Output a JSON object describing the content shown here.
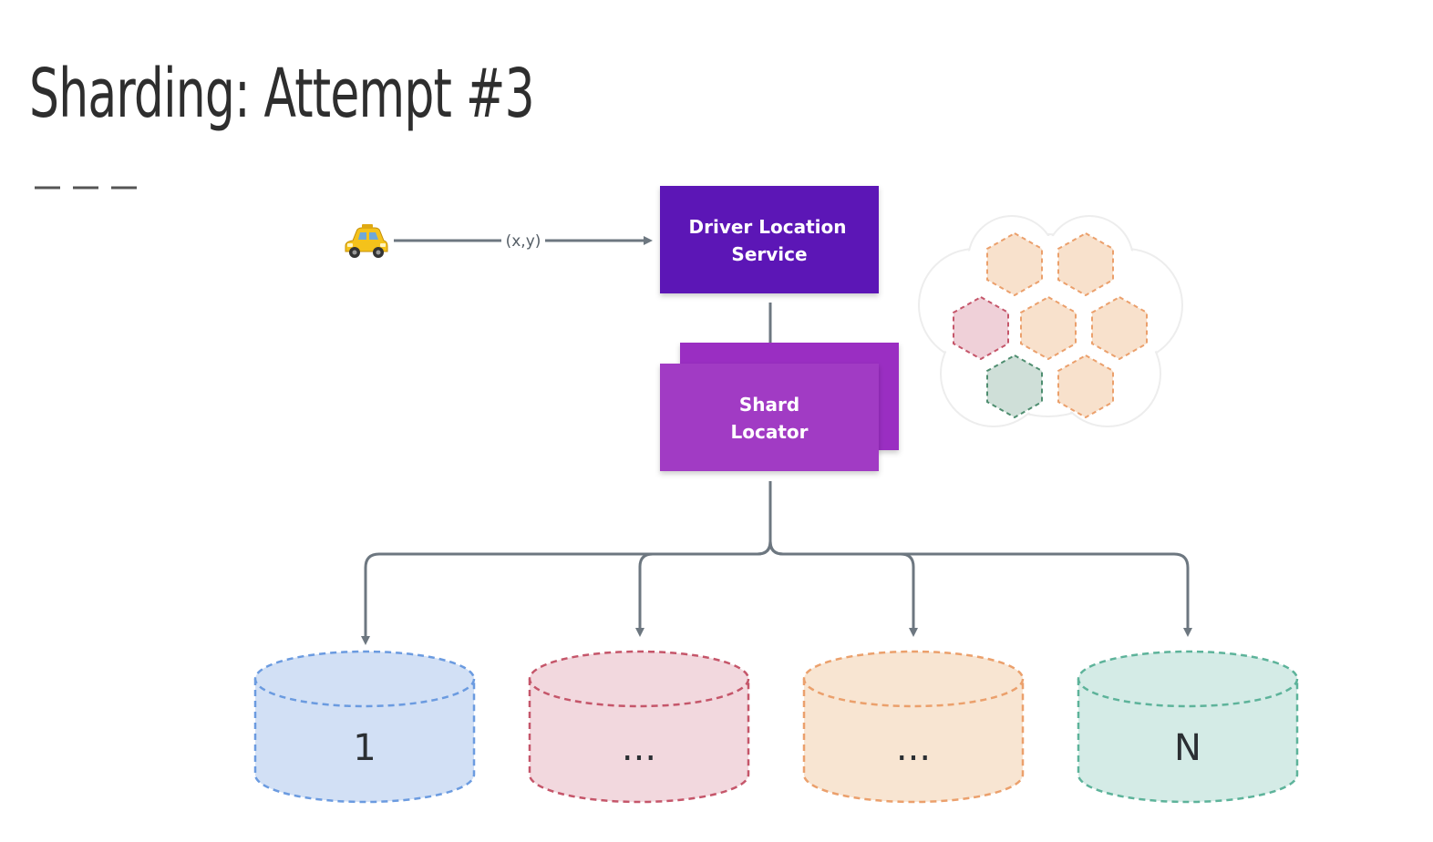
{
  "title": "Sharding: Attempt #3",
  "driver_icon": "taxi-icon",
  "arrow_label": "(x,y)",
  "service_box": {
    "line1": "Driver Location",
    "line2": "Service"
  },
  "locator_box": {
    "line1": "Shard",
    "line2": "Locator"
  },
  "shards": [
    {
      "label": "1"
    },
    {
      "label": "..."
    },
    {
      "label": "..."
    },
    {
      "label": "N"
    }
  ],
  "colors": {
    "service": "#5b19b6",
    "locator": "#a13ac4",
    "locator_back": "#9a2fc2",
    "connector": "#6d7780",
    "shard_blue": "#d2e0f5",
    "shard_pink": "#f2d8de",
    "shard_orange": "#f8e5d2",
    "shard_teal": "#d4ebe6"
  }
}
